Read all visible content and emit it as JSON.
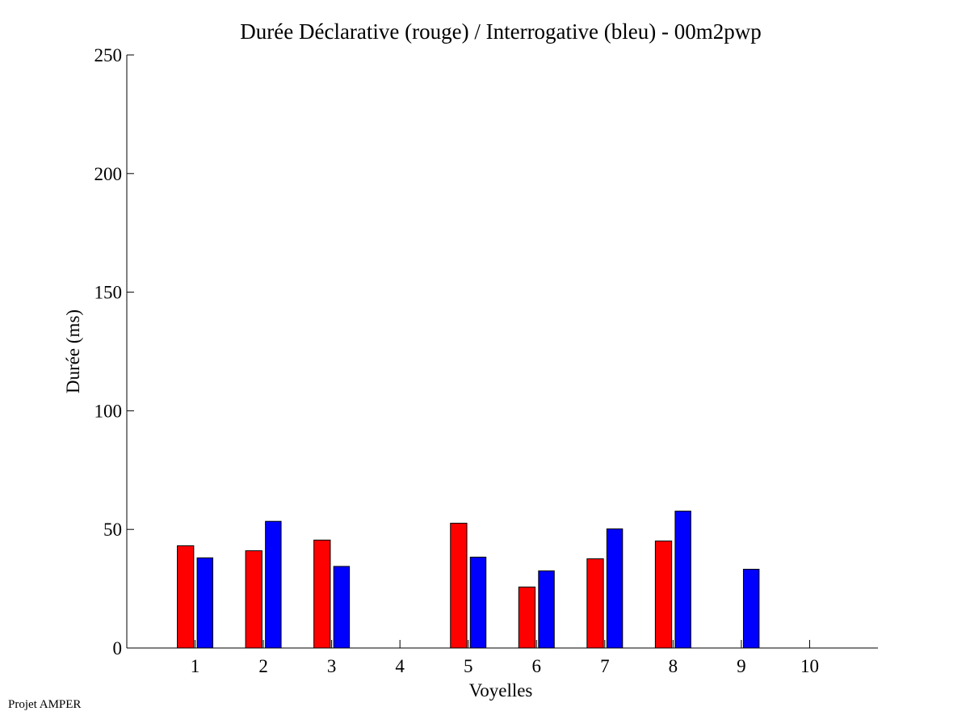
{
  "chart_data": {
    "type": "bar",
    "title": "Durée Déclarative (rouge) / Interrogative (bleu) - 00m2pwp",
    "xlabel": "Voyelles",
    "ylabel": "Durée (ms)",
    "categories": [
      "1",
      "2",
      "3",
      "4",
      "5",
      "6",
      "7",
      "8",
      "9",
      "10"
    ],
    "xlim": [
      0,
      11
    ],
    "ylim": [
      0,
      250
    ],
    "yticks": [
      0,
      50,
      100,
      150,
      200,
      250
    ],
    "grid": false,
    "series": [
      {
        "name": "Déclarative",
        "color": "#ff0000",
        "values": [
          43.1,
          41.0,
          45.5,
          null,
          52.6,
          25.7,
          37.6,
          45.1,
          null,
          null
        ]
      },
      {
        "name": "Interrogative",
        "color": "#0000ff",
        "values": [
          38.0,
          53.4,
          34.4,
          null,
          38.3,
          32.5,
          50.2,
          57.7,
          33.2,
          null
        ]
      }
    ]
  },
  "footer": "Projet AMPER"
}
